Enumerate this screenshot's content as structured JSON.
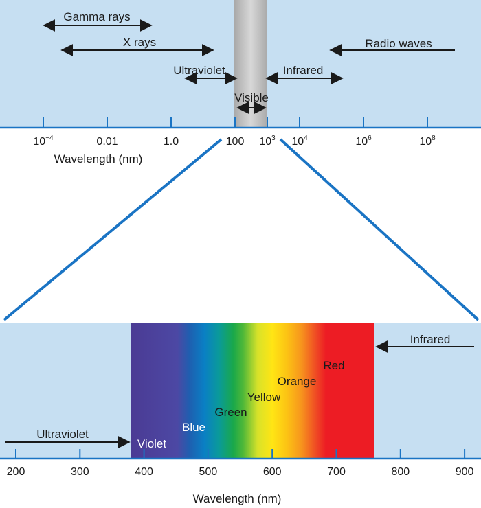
{
  "colors": {
    "panel_bg": "#c6dff2",
    "axis_blue": "#1a74c4",
    "visible_band": "#bdbdbd",
    "arrow": "#1a1a1a",
    "zoom_line": "#1a74c4"
  },
  "top": {
    "bands": [
      {
        "key": "gamma",
        "label": "Gamma rays"
      },
      {
        "key": "xray",
        "label": "X rays"
      },
      {
        "key": "radio",
        "label": "Radio waves"
      },
      {
        "key": "uv",
        "label": "Ultraviolet"
      },
      {
        "key": "ir",
        "label": "Infrared"
      },
      {
        "key": "visible",
        "label": "Visible"
      }
    ],
    "ticks": [
      {
        "base": "10",
        "exp": "−4"
      },
      {
        "base": "0.01",
        "exp": ""
      },
      {
        "base": "1.0",
        "exp": ""
      },
      {
        "base": "100",
        "exp": ""
      },
      {
        "base": "10",
        "exp": "3"
      },
      {
        "base": "10",
        "exp": "4"
      },
      {
        "base": "10",
        "exp": "6"
      },
      {
        "base": "10",
        "exp": "8"
      }
    ],
    "axis_label": "Wavelength (nm)"
  },
  "bottom": {
    "ticks": [
      "200",
      "300",
      "400",
      "500",
      "600",
      "700",
      "800",
      "900"
    ],
    "axis_label": "Wavelength (nm)",
    "labels": {
      "ultraviolet": "Ultraviolet",
      "infrared": "Infrared",
      "violet": "Violet",
      "blue": "Blue",
      "green": "Green",
      "yellow": "Yellow",
      "orange": "Orange",
      "red": "Red"
    },
    "spectrum_range_nm": [
      380,
      760
    ]
  }
}
